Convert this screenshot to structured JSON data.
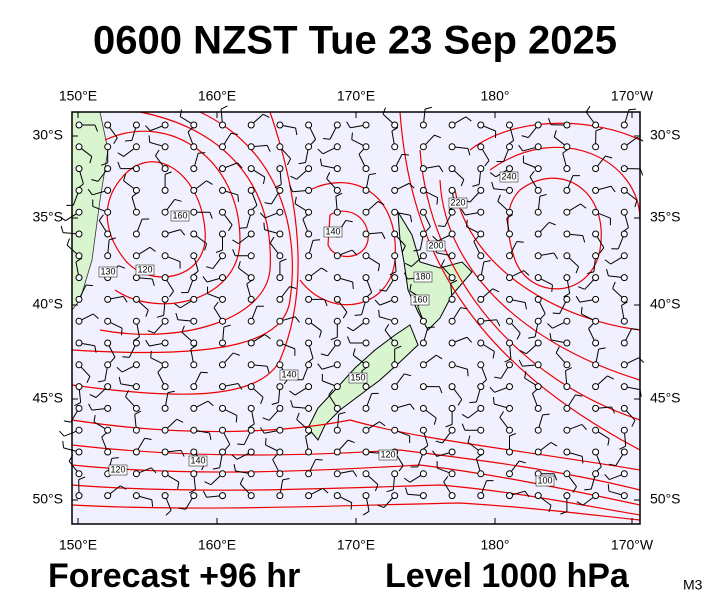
{
  "title": "0600 NZST Tue 23 Sep 2025",
  "map": {
    "lon_labels": [
      "150°E",
      "160°E",
      "170°E",
      "180°",
      "170°W"
    ],
    "lat_labels": [
      "30°S",
      "35°S",
      "40°S",
      "45°S",
      "50°S"
    ],
    "contour_labels": [
      "160",
      "120",
      "130",
      "140",
      "220",
      "240",
      "200",
      "180",
      "160",
      "140",
      "150",
      "120",
      "140",
      "120",
      "100"
    ]
  },
  "footer": {
    "forecast": "Forecast +96 hr",
    "level": "Level 1000 hPa",
    "model": "M3"
  }
}
